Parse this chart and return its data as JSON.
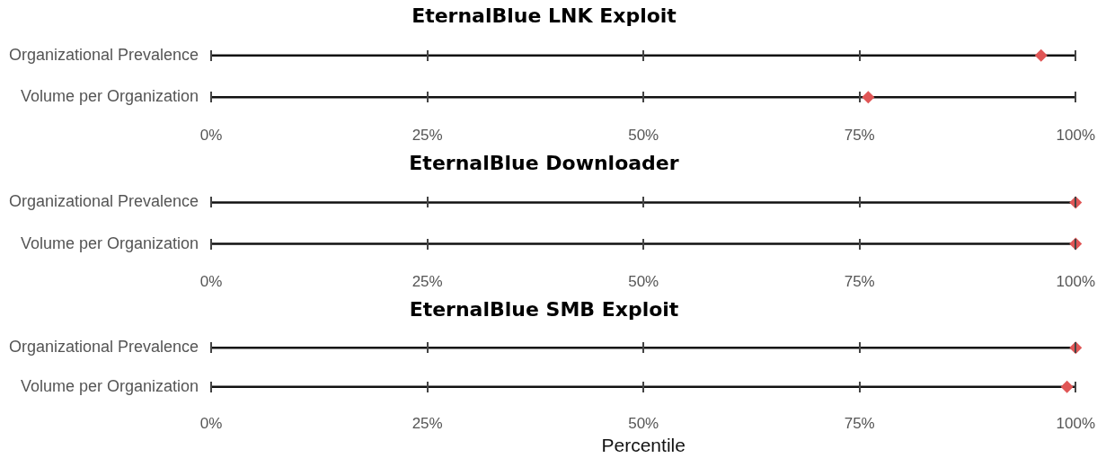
{
  "chart_data": [
    {
      "type": "scatter",
      "orientation": "horizontal",
      "title": "EternalBlue LNK Exploit",
      "categories": [
        "Organizational Prevalence",
        "Volume per Organization"
      ],
      "values": [
        96,
        76
      ],
      "color": "#e05656",
      "marker": "diamond",
      "grid": true,
      "xlim": [
        0,
        100
      ],
      "xticks": [
        {
          "value": 0,
          "label": "0%"
        },
        {
          "value": 25,
          "label": "25%"
        },
        {
          "value": 50,
          "label": "50%"
        },
        {
          "value": 75,
          "label": "75%"
        },
        {
          "value": 100,
          "label": "100%"
        }
      ]
    },
    {
      "type": "scatter",
      "orientation": "horizontal",
      "title": "EternalBlue Downloader",
      "categories": [
        "Organizational Prevalence",
        "Volume per Organization"
      ],
      "values": [
        100,
        100
      ],
      "color": "#e05656",
      "marker": "diamond",
      "grid": true,
      "xlim": [
        0,
        100
      ],
      "xticks": [
        {
          "value": 0,
          "label": "0%"
        },
        {
          "value": 25,
          "label": "25%"
        },
        {
          "value": 50,
          "label": "50%"
        },
        {
          "value": 75,
          "label": "75%"
        },
        {
          "value": 100,
          "label": "100%"
        }
      ]
    },
    {
      "type": "scatter",
      "orientation": "horizontal",
      "title": "EternalBlue SMB Exploit",
      "xlabel": "Percentile",
      "categories": [
        "Organizational Prevalence",
        "Volume per Organization"
      ],
      "values": [
        100,
        99
      ],
      "color": "#e05656",
      "marker": "diamond",
      "grid": true,
      "xlim": [
        0,
        100
      ],
      "xticks": [
        {
          "value": 0,
          "label": "0%"
        },
        {
          "value": 25,
          "label": "25%"
        },
        {
          "value": 50,
          "label": "50%"
        },
        {
          "value": 75,
          "label": "75%"
        },
        {
          "value": 100,
          "label": "100%"
        }
      ]
    }
  ]
}
